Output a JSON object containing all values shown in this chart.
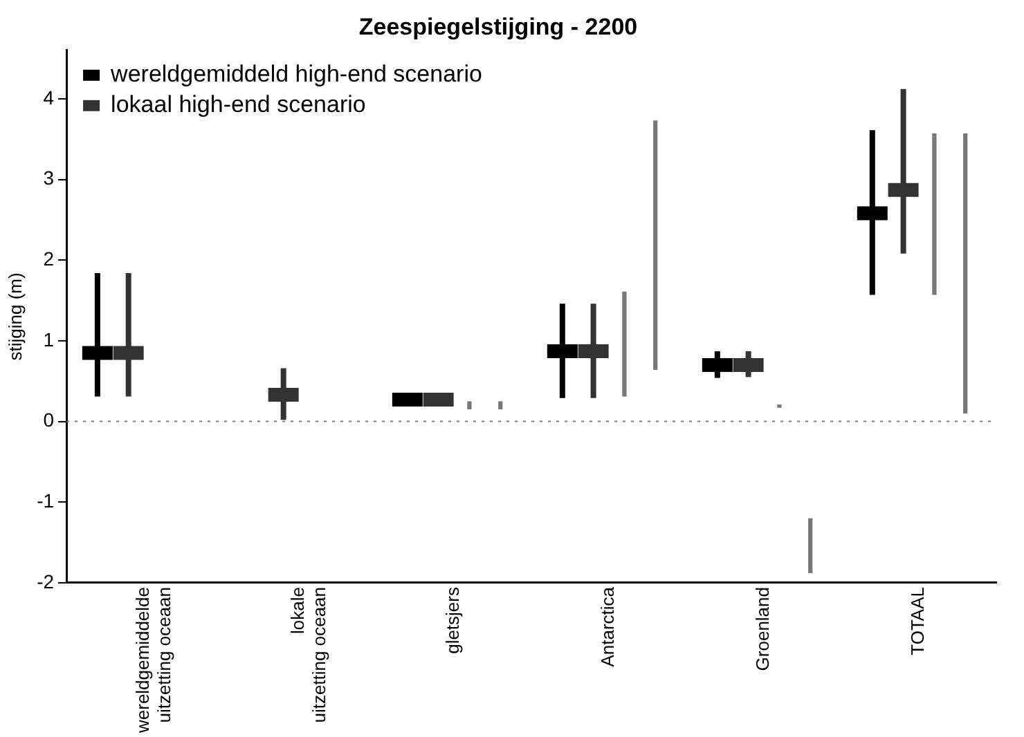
{
  "chart_data": {
    "type": "bar",
    "title": "Zeespiegelstijging - 2200",
    "ylabel": "stijging (m)",
    "categories": [
      "wereldgemiddelde\nuitzetting oceaan",
      "lokale\nuitzetting oceaan",
      "gletsjers",
      "Antarctica",
      "Groenland",
      "TOTAAL"
    ],
    "series": [
      {
        "name": "wereldgemiddeld high-end scenario",
        "type": "scatter",
        "color": "#000000",
        "values": [
          0.85,
          null,
          0.27,
          0.87,
          0.7,
          2.58
        ],
        "errors": [
          [
            0.31,
            1.84
          ],
          null,
          [
            0.2,
            0.32
          ],
          [
            0.29,
            1.46
          ],
          [
            0.54,
            0.87
          ],
          [
            1.57,
            3.61
          ]
        ]
      },
      {
        "name": "lokaal high-end scenario",
        "type": "scatter",
        "color": "#333333",
        "values": [
          0.85,
          0.33,
          0.27,
          0.87,
          0.7,
          2.87
        ],
        "errors": [
          [
            0.31,
            1.84
          ],
          [
            0.02,
            0.66
          ],
          [
            0.2,
            0.32
          ],
          [
            0.29,
            1.46
          ],
          [
            0.55,
            0.87
          ],
          [
            2.08,
            4.12
          ]
        ]
      },
      {
        "type": "bar",
        "color": "#777777",
        "base": [
          null,
          null,
          0.15,
          0.31,
          0.17,
          1.57
        ],
        "values": [
          null,
          null,
          0.1,
          1.3,
          0.04,
          2.0
        ]
      },
      {
        "type": "bar",
        "color": "#777777",
        "base": [
          null,
          null,
          0.15,
          0.64,
          -1.88,
          0.1
        ],
        "values": [
          null,
          null,
          0.1,
          3.09,
          0.68,
          3.47
        ]
      }
    ],
    "marker": "square",
    "ylim": [
      -2,
      4.6
    ],
    "yticks": [
      -2,
      -1,
      0,
      1,
      2,
      3,
      4
    ],
    "grid": false,
    "legend": "top left",
    "ref_lines": [
      {
        "axis": "y",
        "value": 0,
        "line_style": "dotted"
      }
    ]
  }
}
